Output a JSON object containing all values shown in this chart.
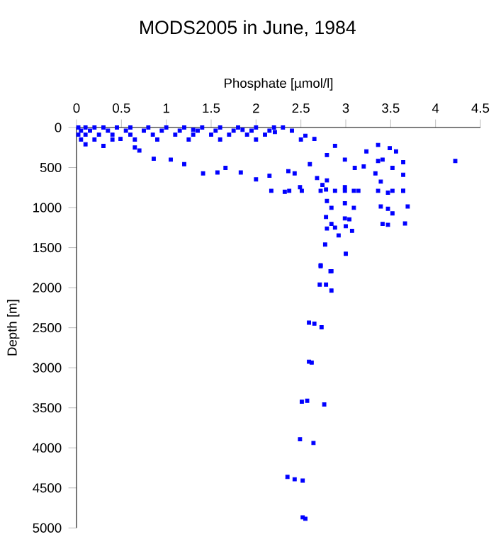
{
  "chart_data": {
    "type": "scatter",
    "title": "MODS2005 in June, 1984",
    "xlabel": "Phosphate [µmol/l]",
    "ylabel": "Depth [m]",
    "xlim": [
      0,
      4.5
    ],
    "xticks": [
      0,
      0.5,
      1,
      1.5,
      2,
      2.5,
      3,
      3.5,
      4,
      4.5
    ],
    "ylim": [
      5000,
      0
    ],
    "yticks": [
      0,
      500,
      1000,
      1500,
      2000,
      2500,
      3000,
      3500,
      4000,
      4500,
      5000
    ],
    "marker": "square",
    "series": [
      {
        "color": "#0000ff",
        "x": [
          0.02,
          0.1,
          0.2,
          0.3,
          0.45,
          0.6,
          0.8,
          1.0,
          1.2,
          1.4,
          1.6,
          1.8,
          2.0,
          2.2,
          2.3,
          0.05,
          0.15,
          0.35,
          0.55,
          0.75,
          0.95,
          1.15,
          1.35,
          1.55,
          1.75,
          1.95,
          2.15,
          2.4,
          0.02,
          0.1,
          0.25,
          0.4,
          0.6,
          0.85,
          1.1,
          1.3,
          1.5,
          1.7,
          1.9,
          2.1,
          0.05,
          0.2,
          0.4,
          0.65,
          0.9,
          1.25,
          1.6,
          2.0,
          2.5,
          0.1,
          0.3,
          0.49,
          0.65,
          0.7,
          0.86,
          1.05,
          1.2,
          1.41,
          1.57,
          1.66,
          1.83,
          2.0,
          2.15,
          2.36,
          2.43,
          2.6,
          2.65,
          2.55,
          2.21,
          1.85,
          1.3,
          2.68,
          2.74,
          2.79,
          2.78,
          2.88,
          2.99,
          2.79,
          2.88,
          2.99,
          3.23,
          3.36,
          3.49,
          3.56,
          3.41,
          3.36,
          3.2,
          3.1,
          3.33,
          3.39,
          3.52,
          3.64,
          3.64,
          3.64,
          3.52,
          3.14,
          4.22,
          2.32,
          2.49,
          2.17,
          2.37,
          2.51,
          2.72,
          2.99,
          3.09,
          3.36,
          3.47,
          3.64,
          2.79,
          2.99,
          3.09,
          2.84,
          2.78,
          2.99,
          3.04,
          2.84,
          2.88,
          2.79,
          3.0,
          3.07,
          2.92,
          3.39,
          3.47,
          3.52,
          3.69,
          3.41,
          3.47,
          3.66,
          2.77,
          3.0,
          2.72,
          2.84,
          2.72,
          2.83,
          2.71,
          2.78,
          2.84,
          2.59,
          2.65,
          2.73,
          2.59,
          2.62,
          2.51,
          2.57,
          2.76,
          2.49,
          2.64,
          2.35,
          2.43,
          2.52,
          2.52,
          2.55
        ],
        "values": [
          0,
          0,
          0,
          0,
          0,
          0,
          0,
          0,
          0,
          0,
          0,
          0,
          0,
          0,
          0,
          40,
          40,
          40,
          40,
          40,
          40,
          40,
          40,
          40,
          40,
          40,
          40,
          40,
          90,
          90,
          90,
          90,
          90,
          90,
          90,
          90,
          90,
          90,
          90,
          90,
          150,
          150,
          150,
          150,
          150,
          150,
          150,
          150,
          150,
          210,
          230,
          143,
          250,
          287,
          390,
          401,
          458,
          573,
          562,
          504,
          562,
          648,
          602,
          545,
          573,
          458,
          143,
          103,
          57,
          29,
          29,
          631,
          717,
          660,
          774,
          791,
          745,
          344,
          229,
          401,
          298,
          218,
          258,
          298,
          401,
          418,
          487,
          504,
          573,
          676,
          504,
          590,
          791,
          433,
          791,
          791,
          418,
          803,
          745,
          791,
          791,
          791,
          791,
          791,
          791,
          791,
          814,
          791,
          918,
          946,
          1003,
          1003,
          1118,
          1135,
          1147,
          1204,
          1250,
          1261,
          1233,
          1290,
          1348,
          986,
          1015,
          1072,
          986,
          1204,
          1215,
          1198,
          1462,
          1576,
          1720,
          1794,
          1732,
          1795,
          1961,
          1961,
          2036,
          2437,
          2449,
          2494,
          2924,
          2935,
          3424,
          3412,
          3458,
          3893,
          3939,
          4363,
          4392,
          4409,
          4868,
          4885
        ]
      }
    ]
  }
}
